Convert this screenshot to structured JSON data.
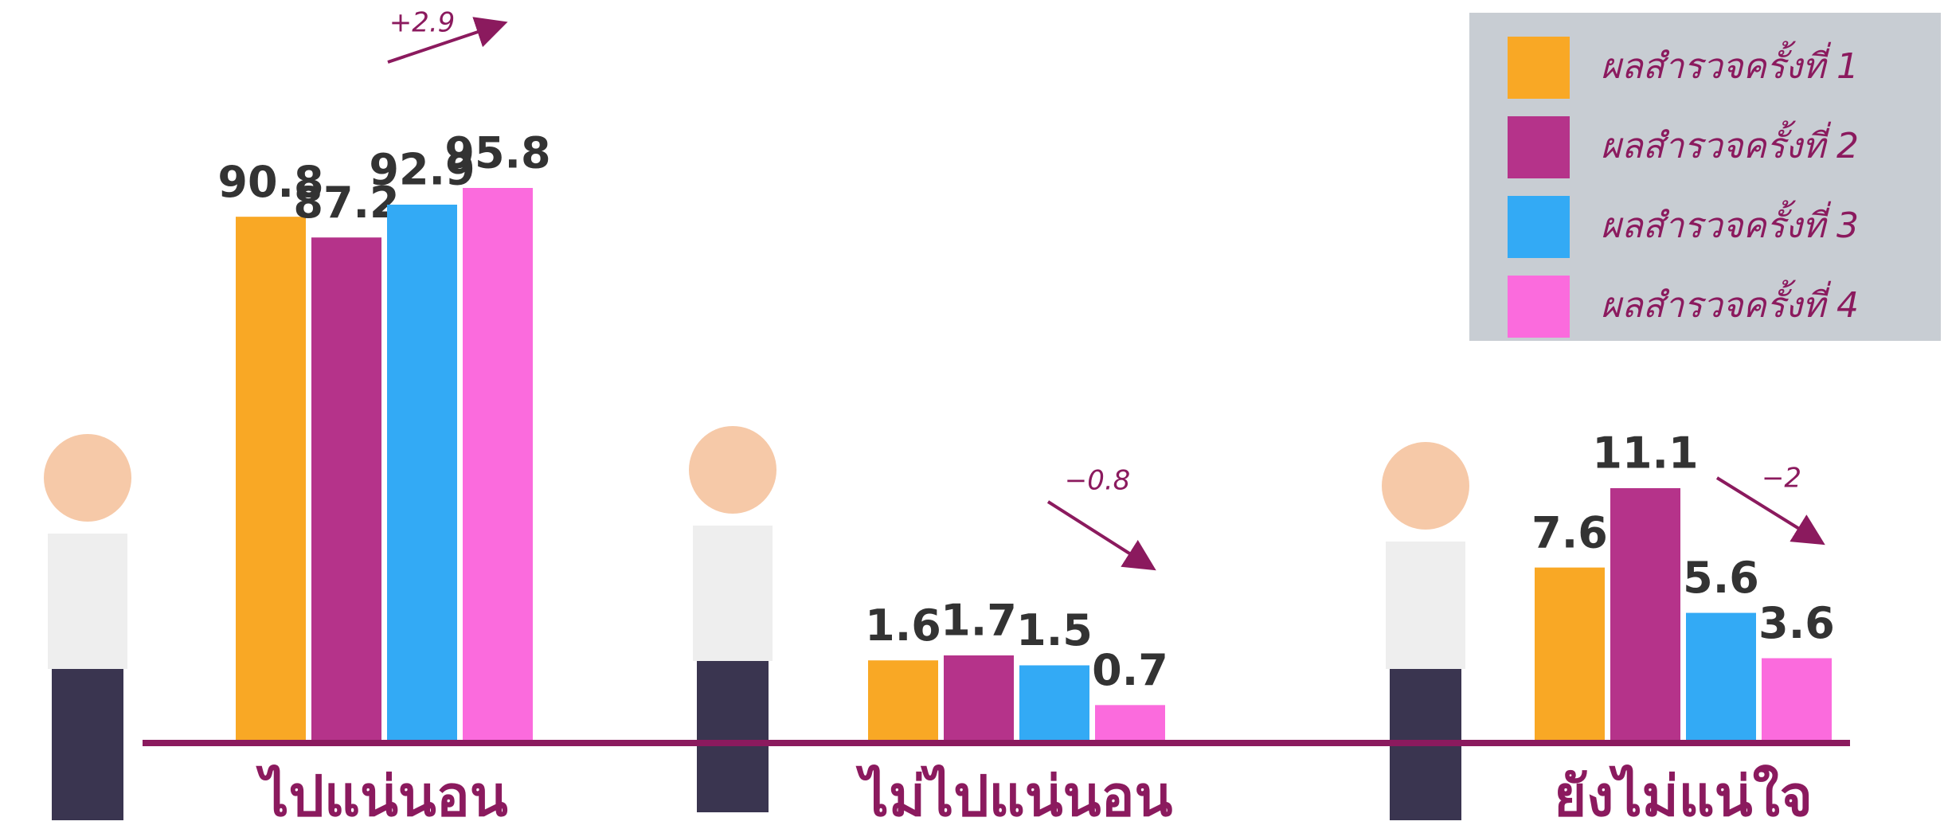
{
  "chart_data": {
    "type": "bar",
    "categories": [
      "ไปแน่นอน",
      "ไม่ไปแน่นอน",
      "ยังไม่แน่ใจ"
    ],
    "series": [
      {
        "name": "ผลสำรวจครั้งที่ 1",
        "color": "#f9a825",
        "values": [
          90.8,
          1.6,
          7.6
        ]
      },
      {
        "name": "ผลสำรวจครั้งที่ 2",
        "color": "#b5338a",
        "values": [
          87.2,
          1.7,
          11.1
        ]
      },
      {
        "name": "ผลสำรวจครั้งที่ 3",
        "color": "#33aaf5",
        "values": [
          92.9,
          1.5,
          5.6
        ]
      },
      {
        "name": "ผลสำรวจครั้งที่ 4",
        "color": "#fb6bdd",
        "values": [
          95.8,
          0.7,
          3.6
        ]
      }
    ],
    "annotations": [
      "+2.9",
      "−0.8",
      "−2"
    ],
    "legend": "upper right"
  }
}
